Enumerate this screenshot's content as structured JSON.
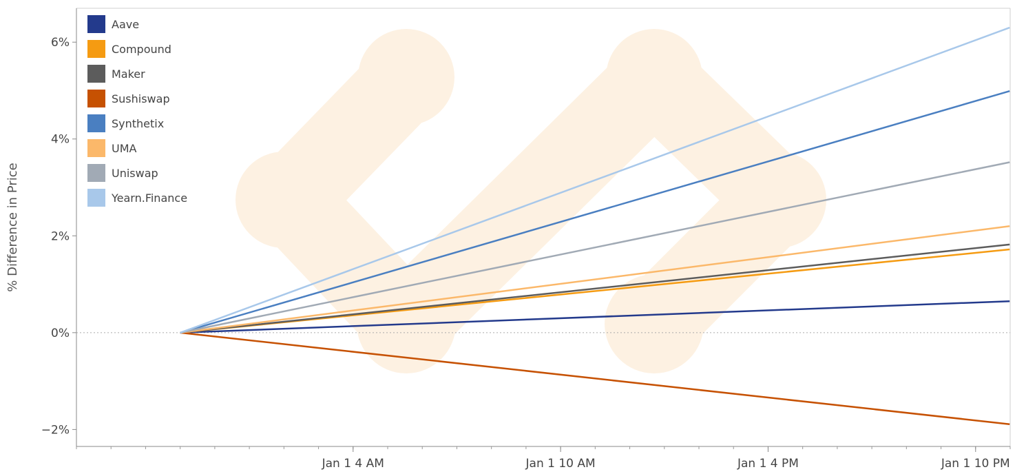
{
  "chart_data": {
    "type": "line",
    "title": "",
    "xlabel": "",
    "ylabel": "% Difference in Price",
    "x_range": [
      "Dec 31 8 PM",
      "Jan 1 11 PM"
    ],
    "ylim": [
      -2.35,
      6.7
    ],
    "y_ticks": [
      {
        "value": -2,
        "label": "−2%"
      },
      {
        "value": 0,
        "label": "0%"
      },
      {
        "value": 2,
        "label": "2%"
      },
      {
        "value": 4,
        "label": "4%"
      },
      {
        "value": 6,
        "label": "6%"
      }
    ],
    "x_ticks": [
      {
        "value": "Jan 1 4 AM",
        "label": "Jan 1 4 AM"
      },
      {
        "value": "Jan 1 10 AM",
        "label": "Jan 1 10 AM"
      },
      {
        "value": "Jan 1 4 PM",
        "label": "Jan 1 4 PM"
      },
      {
        "value": "Jan 1 10 PM",
        "label": "Jan 1 10 PM"
      }
    ],
    "zero_line": true,
    "grid": false,
    "legend_position": "top-left",
    "x": [
      "Dec 31 11 PM",
      "Jan 1 10:59 PM"
    ],
    "series": [
      {
        "name": "Aave",
        "color": "#233a8c",
        "values": [
          0,
          0.65
        ]
      },
      {
        "name": "Compound",
        "color": "#f59b12",
        "values": [
          0,
          1.72
        ]
      },
      {
        "name": "Maker",
        "color": "#5c5c5c",
        "values": [
          0,
          1.82
        ]
      },
      {
        "name": "Sushiswap",
        "color": "#c65102",
        "values": [
          0,
          -1.89
        ]
      },
      {
        "name": "Synthetix",
        "color": "#4a7fc1",
        "values": [
          0,
          4.99
        ]
      },
      {
        "name": "UMA",
        "color": "#fbb86a",
        "values": [
          0,
          2.2
        ]
      },
      {
        "name": "Uniswap",
        "color": "#a1aab5",
        "values": [
          0,
          3.52
        ]
      },
      {
        "name": "Yearn.Finance",
        "color": "#a8c8ea",
        "values": [
          0,
          6.3
        ]
      }
    ]
  }
}
